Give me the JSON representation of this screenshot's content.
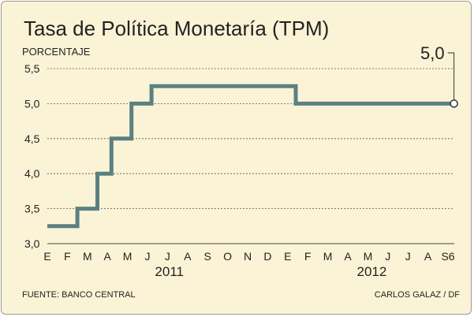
{
  "chart_data": {
    "type": "line",
    "step": true,
    "title": "Tasa de Política Monetaría (TPM)",
    "ylabel": "PORCENTAJE",
    "ylim": [
      3.0,
      5.5
    ],
    "yticks": [
      "3,0",
      "3,5",
      "4,0",
      "4,5",
      "5,0",
      "5,5"
    ],
    "ytick_values": [
      3.0,
      3.5,
      4.0,
      4.5,
      5.0,
      5.5
    ],
    "grid": "horizontal-dashed",
    "categories": [
      "E",
      "F",
      "M",
      "A",
      "M",
      "J",
      "J",
      "A",
      "S",
      "O",
      "N",
      "D",
      "E",
      "F",
      "M",
      "A",
      "M",
      "J",
      "J",
      "A",
      "S6"
    ],
    "years": [
      "2011",
      "2012"
    ],
    "series": [
      {
        "name": "TPM",
        "color": "#5b8082",
        "points": [
          [
            0,
            3.25
          ],
          [
            1.5,
            3.25
          ],
          [
            1.5,
            3.5
          ],
          [
            2.5,
            3.5
          ],
          [
            2.5,
            4.0
          ],
          [
            3.2,
            4.0
          ],
          [
            3.2,
            4.5
          ],
          [
            4.2,
            4.5
          ],
          [
            4.2,
            5.0
          ],
          [
            5.2,
            5.0
          ],
          [
            5.2,
            5.25
          ],
          [
            12.4,
            5.25
          ],
          [
            12.4,
            5.0
          ],
          [
            20.3,
            5.0
          ]
        ]
      }
    ],
    "end_label": "5,0",
    "source": "FUENTE: BANCO CENTRAL",
    "credit": "CARLOS GALAZ / DF"
  }
}
